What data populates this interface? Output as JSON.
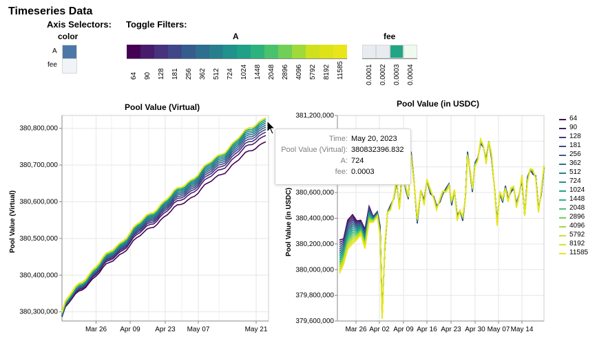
{
  "page_title": "Timeseries Data",
  "selectors": {
    "axis_label": "Axis Selectors:",
    "filters_label": "Toggle Filters:",
    "color": {
      "title": "color",
      "options": [
        "A",
        "fee"
      ],
      "selected": "A"
    },
    "A_filter": {
      "title": "A",
      "values": [
        "64",
        "90",
        "128",
        "181",
        "256",
        "362",
        "512",
        "724",
        "1024",
        "1448",
        "2048",
        "2896",
        "4096",
        "5792",
        "8192",
        "11585"
      ]
    },
    "fee_filter": {
      "title": "fee",
      "values": [
        "0.0001",
        "0.0002",
        "0.0003",
        "0.0004"
      ],
      "selected": "0.0003"
    }
  },
  "tooltip": {
    "rows": [
      {
        "key": "Time:",
        "value": "May 20, 2023"
      },
      {
        "key": "Pool Value (Virtual):",
        "value": "380832396.832"
      },
      {
        "key": "A:",
        "value": "724"
      },
      {
        "key": "fee:",
        "value": "0.0003"
      }
    ]
  },
  "colors": [
    "#440154",
    "#481b6d",
    "#46327e",
    "#3f4788",
    "#365c8d",
    "#2e6e8e",
    "#277f8e",
    "#21918c",
    "#1fa187",
    "#2db27d",
    "#4ac16d",
    "#71cf57",
    "#9fda3a",
    "#cfe11c",
    "#dde318",
    "#eae51a"
  ],
  "chart_data": [
    {
      "type": "line",
      "title": "Pool Value (Virtual)",
      "xlabel": "",
      "ylabel": "Pool Value (Virtual)",
      "x_start": "2023-03-20",
      "x_end": "2023-05-21",
      "x_ticks": [
        "Mar 26",
        "Apr 09",
        "Apr 23",
        "May 07",
        "May 21"
      ],
      "y_ticks": [
        "380,300,000",
        "380,400,000",
        "380,500,000",
        "380,600,000",
        "380,700,000",
        "380,800,000"
      ],
      "ylim": [
        380275000,
        380835000
      ],
      "series_A": [
        "64",
        "90",
        "128",
        "181",
        "256",
        "362",
        "512",
        "724",
        "1024",
        "1448",
        "2048",
        "2896",
        "4096",
        "5792",
        "8192",
        "11585"
      ],
      "end_range": [
        380767000,
        380832396.832
      ]
    },
    {
      "type": "line",
      "title": "Pool Value (in USDC)",
      "xlabel": "",
      "ylabel": "Pool Value (in USDC)",
      "x_ticks": [
        "Mar 26",
        "Apr 02",
        "Apr 09",
        "Apr 16",
        "Apr 23",
        "Apr 30",
        "May 07",
        "May 14"
      ],
      "y_ticks": [
        "379,600,000",
        "379,800,000",
        "380,000,000",
        "380,200,000",
        "380,400,000",
        "380,600,000",
        "380,800,000",
        "381,000,000",
        "381,200,000"
      ],
      "ylim": [
        379600000,
        381200000
      ],
      "legend": [
        "64",
        "90",
        "128",
        "181",
        "256",
        "362",
        "512",
        "724",
        "1024",
        "1448",
        "2048",
        "2896",
        "4096",
        "5792",
        "8192",
        "11585"
      ],
      "legend_position": "right"
    }
  ]
}
